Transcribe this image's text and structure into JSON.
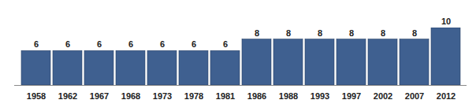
{
  "chart_data": {
    "type": "bar",
    "categories": [
      "1958",
      "1962",
      "1967",
      "1968",
      "1973",
      "1978",
      "1981",
      "1986",
      "1988",
      "1993",
      "1997",
      "2002",
      "2007",
      "2012"
    ],
    "values": [
      6,
      6,
      6,
      6,
      6,
      6,
      6,
      8,
      8,
      8,
      8,
      8,
      8,
      10
    ],
    "color": "#3f6090",
    "ylim": [
      0,
      10
    ],
    "yticks": [],
    "grid": false,
    "data_labels": true,
    "tick_labels": "x"
  }
}
